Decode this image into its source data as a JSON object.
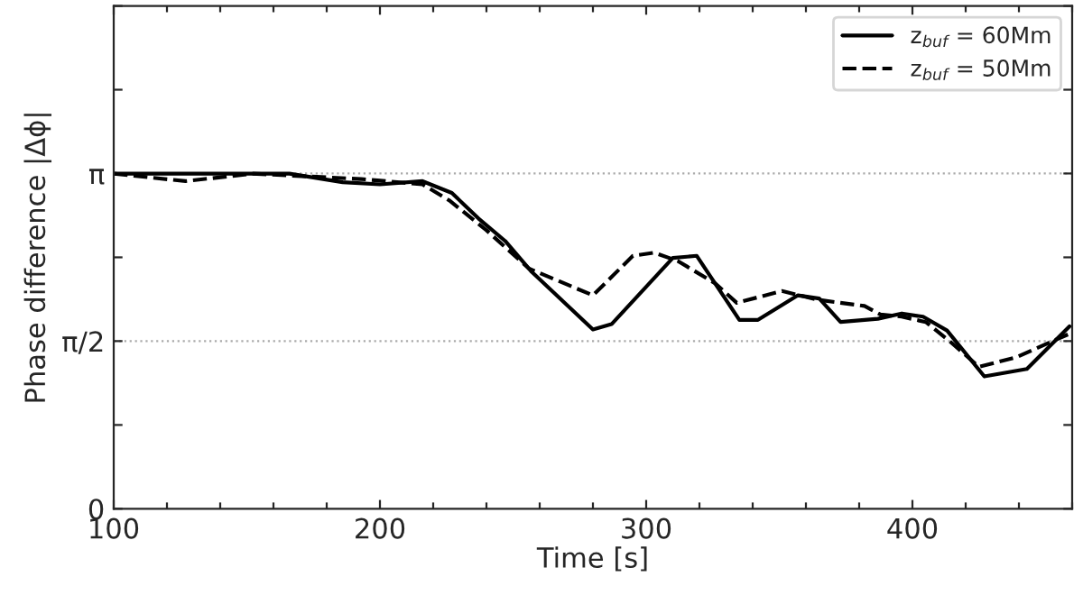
{
  "chart_data": {
    "type": "line",
    "xlabel": "Time [s]",
    "ylabel": "Phase difference |Δϕ|",
    "xlim": [
      100,
      460
    ],
    "ylim": [
      0,
      4.712
    ],
    "xticks": [
      100,
      {
        "value": 120,
        "label": null
      },
      {
        "value": 140,
        "label": null
      },
      {
        "value": 160,
        "label": null
      },
      {
        "value": 180,
        "label": null
      },
      200,
      {
        "value": 220,
        "label": null
      },
      {
        "value": 240,
        "label": null
      },
      {
        "value": 260,
        "label": null
      },
      {
        "value": 280,
        "label": null
      },
      300,
      {
        "value": 320,
        "label": null
      },
      {
        "value": 340,
        "label": null
      },
      {
        "value": 360,
        "label": null
      },
      {
        "value": 380,
        "label": null
      },
      400,
      {
        "value": 420,
        "label": null
      },
      {
        "value": 440,
        "label": null
      },
      {
        "value": 460,
        "label": null
      }
    ],
    "yticks": [
      {
        "value": 0,
        "label": "0"
      },
      {
        "value": 0.785,
        "label": null
      },
      {
        "value": 1.571,
        "label": "π/2"
      },
      {
        "value": 2.356,
        "label": null
      },
      {
        "value": 3.142,
        "label": "π"
      },
      {
        "value": 3.927,
        "label": null
      },
      {
        "value": 4.712,
        "label": null
      }
    ],
    "ref_lines": [
      {
        "axis": "y",
        "value": 3.142,
        "color": "#aaaaaa",
        "line_style": "dotted"
      },
      {
        "axis": "y",
        "value": 1.571,
        "color": "#aaaaaa",
        "line_style": "dotted"
      }
    ],
    "legend": "top right",
    "grid": false,
    "series": [
      {
        "name": "z$_{buf}$ = 60Mm",
        "color": "#000000",
        "line_style": "solid",
        "x": [
          100,
          166,
          186,
          200,
          216,
          227,
          237,
          247,
          257,
          280,
          287,
          310,
          319,
          335,
          342,
          357,
          365,
          373,
          387,
          396,
          404,
          413,
          427,
          443,
          459
        ],
        "values": [
          3.14,
          3.14,
          3.06,
          3.04,
          3.07,
          2.96,
          2.72,
          2.51,
          2.22,
          1.68,
          1.73,
          2.35,
          2.37,
          1.77,
          1.77,
          2.0,
          1.97,
          1.75,
          1.78,
          1.83,
          1.8,
          1.67,
          1.24,
          1.31,
          1.71
        ]
      },
      {
        "name": "z$_{buf}$ = 50Mm",
        "color": "#000000",
        "line_style": "dashed",
        "x": [
          100,
          127,
          152,
          193,
          216,
          226,
          240,
          256,
          280,
          295,
          303,
          312,
          326,
          334,
          351,
          364,
          382,
          388,
          396,
          405,
          414,
          425,
          439,
          459
        ],
        "values": [
          3.14,
          3.07,
          3.14,
          3.09,
          3.04,
          2.89,
          2.61,
          2.25,
          2.0,
          2.37,
          2.4,
          2.32,
          2.11,
          1.93,
          2.04,
          1.96,
          1.9,
          1.82,
          1.8,
          1.75,
          1.57,
          1.33,
          1.42,
          1.64
        ]
      }
    ]
  }
}
